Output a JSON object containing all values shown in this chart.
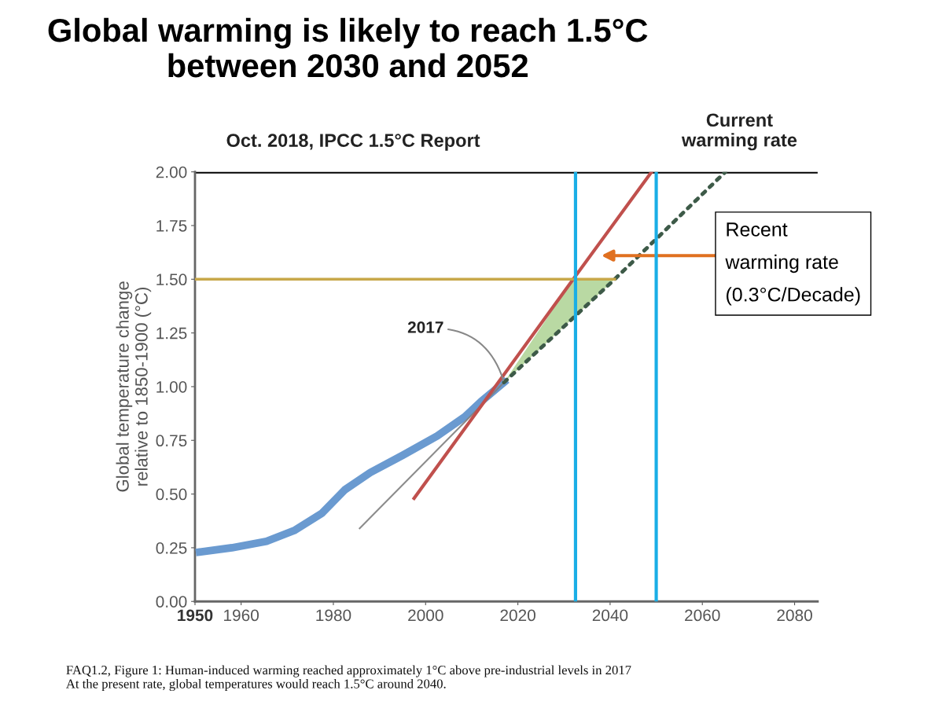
{
  "chart_data": {
    "type": "line",
    "title": "Global warming is likely to reach 1.5°C\nbetween 2030 and 2052",
    "subtitle": "Oct. 2018, IPCC 1.5°C Report",
    "ylabel": "Global temperature change\nrelative to 1850-1900 (°C)",
    "xlim": [
      1950,
      2085
    ],
    "ylim": [
      0,
      2.0
    ],
    "xticks": [
      1950,
      1960,
      1980,
      2000,
      2020,
      2040,
      2060,
      2080
    ],
    "yticks": [
      {
        "value": 0,
        "label": "0.00"
      },
      {
        "value": 0.25,
        "label": "0.25"
      },
      {
        "value": 0.5,
        "label": "0.50"
      },
      {
        "value": 0.75,
        "label": "0.75"
      },
      {
        "value": 1.0,
        "label": "1.00"
      },
      {
        "value": 1.25,
        "label": "1.25"
      },
      {
        "value": 1.5,
        "label": "1.50"
      },
      {
        "value": 1.75,
        "label": "1.75"
      },
      {
        "value": 2.0,
        "label": "2.00"
      }
    ],
    "grid": false,
    "series": [
      {
        "color": "#6a9ad0",
        "x": [
          1951,
          1958,
          1965.5,
          1971.5,
          1977.5,
          1982.5,
          1988,
          1995,
          2002.5,
          2008.5,
          2012,
          2017
        ],
        "values": [
          0.23,
          0.25,
          0.28,
          0.33,
          0.41,
          0.52,
          0.6,
          0.68,
          0.77,
          0.86,
          0.93,
          1.02
        ]
      },
      {
        "color": "#808080",
        "x": [
          1985.7,
          2017
        ],
        "values": [
          0.34,
          1.02
        ]
      },
      {
        "color": "#3d5a48",
        "line_style": "dotted",
        "x": [
          2017,
          2032,
          2041,
          2065
        ],
        "values": [
          1.02,
          1.32,
          1.5,
          2.0
        ]
      },
      {
        "color": "#c0504d",
        "x": [
          1997.5,
          2032,
          2049
        ],
        "values": [
          0.48,
          1.5,
          2.0
        ]
      },
      {
        "color": "#c8a84a",
        "x": [
          1950,
          2041
        ],
        "values": [
          1.5,
          1.5
        ]
      }
    ],
    "ref_lines": [
      {
        "axis": "y",
        "value": 2.0,
        "color": "#000000"
      },
      {
        "axis": "x",
        "value": 2032.5,
        "color": "#1aaee6"
      },
      {
        "axis": "x",
        "value": 2050,
        "color": "#1aaee6"
      }
    ],
    "annotations": [
      {
        "text": "2017",
        "x": 2017,
        "y": 1.02
      },
      "Recent\nwarming rate\n(0.3°C/Decade)",
      "Current\nwarming rate",
      "FAQ1.2, Figure 1: Human-induced warming reached approximately 1°C above pre-industrial levels in 2017\nAt the present rate, global temperatures would reach 1.5°C around 2040."
    ]
  }
}
